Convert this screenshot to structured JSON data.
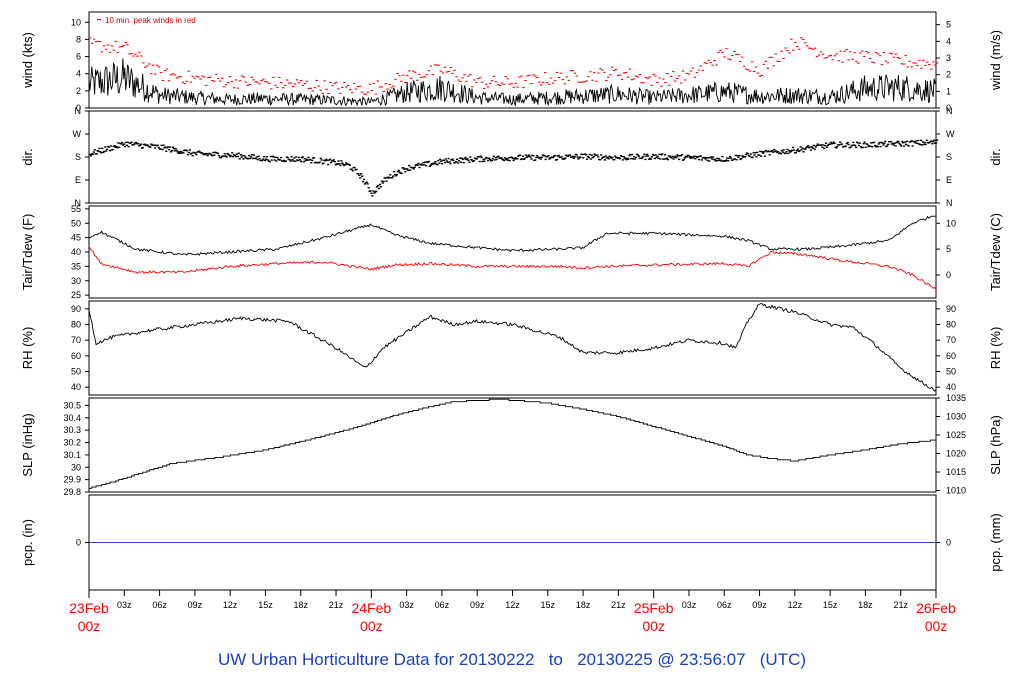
{
  "footer": {
    "title_prefix": "UW Urban Horticulture Data for 20130222",
    "title_to": "to",
    "title_suffix": "20130225 @ 23:56:07",
    "title_tz": "(UTC)"
  },
  "chart_data": [
    {
      "id": "wind",
      "type": "line",
      "ylabel_left": "wind (kts)",
      "ylabel_right": "wind (m/s)",
      "annotation": "10 min. peak winds in red",
      "ylim": [
        0,
        11.2
      ],
      "yticks_left": [
        0,
        2,
        4,
        6,
        8,
        10
      ],
      "yticks_right": [
        0,
        1,
        2,
        3,
        4,
        5
      ],
      "right_ylim": [
        0,
        5.76
      ],
      "x_hours": [
        0,
        3,
        6,
        9,
        12,
        15,
        18,
        21,
        24,
        27,
        30,
        33,
        36,
        39,
        42,
        45,
        48,
        51,
        54,
        57,
        60,
        63,
        66,
        69,
        72
      ],
      "series": [
        {
          "name": "mean wind",
          "color": "#000000",
          "values": [
            2.8,
            3.5,
            1.5,
            1.2,
            1.0,
            1.1,
            1.0,
            0.9,
            0.7,
            1.8,
            2.4,
            1.2,
            1.0,
            1.2,
            1.4,
            1.6,
            1.2,
            1.5,
            1.9,
            1.4,
            1.5,
            1.3,
            2.3,
            2.4,
            2.0
          ]
        },
        {
          "name": "10 min peak",
          "color": "#ff0000",
          "values": [
            7.5,
            7.0,
            4.0,
            3.5,
            3.2,
            3.0,
            2.8,
            2.4,
            2.3,
            3.8,
            4.5,
            3.0,
            3.0,
            3.5,
            3.8,
            4.2,
            3.3,
            3.8,
            6.5,
            4.5,
            7.8,
            6.2,
            6.0,
            5.5,
            5.2
          ]
        }
      ]
    },
    {
      "id": "dir",
      "type": "scatter",
      "ylabel_left": "dir.",
      "ylabel_right": "dir.",
      "ytick_labels": [
        "N",
        "E",
        "S",
        "W",
        "N"
      ],
      "ylim": [
        0,
        360
      ],
      "x_hours": [
        0,
        3,
        6,
        9,
        12,
        15,
        18,
        21,
        22,
        23,
        24,
        25,
        26,
        27,
        30,
        33,
        36,
        39,
        42,
        45,
        48,
        51,
        54,
        57,
        60,
        63,
        66,
        69,
        72
      ],
      "series": [
        {
          "name": "direction",
          "color": "#000000",
          "values": [
            195,
            235,
            220,
            195,
            190,
            175,
            175,
            160,
            150,
            110,
            40,
            90,
            120,
            140,
            165,
            175,
            180,
            180,
            185,
            180,
            185,
            180,
            175,
            195,
            210,
            230,
            230,
            235,
            240
          ]
        }
      ]
    },
    {
      "id": "temp",
      "type": "line",
      "ylabel_left": "Tair/Tdew (F)",
      "ylabel_right": "Tair/Tdew (C)",
      "ylim": [
        24,
        56
      ],
      "yticks_left": [
        25,
        30,
        35,
        40,
        45,
        50,
        55
      ],
      "yticks_right": [
        0,
        5,
        10
      ],
      "x_hours": [
        0,
        1,
        4,
        8,
        12,
        16,
        20,
        24,
        26,
        29,
        33,
        36,
        40,
        42,
        44,
        48,
        54,
        56,
        58,
        61,
        64,
        68,
        70,
        72
      ],
      "series": [
        {
          "name": "Tair",
          "color": "#000000",
          "values": [
            45,
            47,
            41,
            39,
            40,
            41,
            45,
            49.5,
            46,
            43,
            41.5,
            40.5,
            41,
            41.5,
            46.5,
            46.5,
            45.5,
            44,
            41,
            41,
            42,
            44,
            50,
            53
          ]
        },
        {
          "name": "Tdew",
          "color": "#ff0000",
          "values": [
            42,
            36,
            33,
            33,
            35,
            36,
            36.5,
            34,
            35.5,
            36,
            35,
            35,
            35,
            34.5,
            35,
            35.5,
            36,
            35,
            40,
            39,
            37,
            35,
            32,
            27
          ]
        }
      ]
    },
    {
      "id": "rh",
      "type": "line",
      "ylabel_left": "RH (%)",
      "ylabel_right": "RH (%)",
      "ylim": [
        35,
        95
      ],
      "yticks_left": [
        40,
        50,
        60,
        70,
        80,
        90
      ],
      "yticks_right": [
        40,
        50,
        60,
        70,
        80,
        90
      ],
      "x_hours": [
        0,
        0.6,
        2,
        5,
        9,
        13,
        17,
        21,
        23.5,
        25,
        27,
        29,
        31,
        33,
        36,
        40,
        42,
        45,
        48,
        51,
        54,
        55,
        56,
        57,
        60,
        63,
        65,
        67,
        69,
        71,
        72
      ],
      "series": [
        {
          "name": "RH",
          "color": "#000000",
          "values": [
            90,
            68,
            72,
            76,
            80,
            84,
            82,
            65,
            52,
            65,
            75,
            85,
            80,
            82,
            80,
            72,
            62,
            62,
            65,
            70,
            68,
            65,
            82,
            93,
            88,
            80,
            78,
            66,
            52,
            42,
            38
          ]
        }
      ]
    },
    {
      "id": "slp",
      "type": "line",
      "ylabel_left": "SLP (inHg)",
      "ylabel_right": "SLP (hPa)",
      "ylim": [
        29.8,
        30.56
      ],
      "yticks_left": [
        29.8,
        29.9,
        30.0,
        30.1,
        30.2,
        30.3,
        30.4,
        30.5
      ],
      "yticks_right": [
        1010,
        1015,
        1020,
        1025,
        1030,
        1035
      ],
      "right_ylim": [
        1009.6,
        1035
      ],
      "x_hours": [
        0,
        2,
        4,
        7,
        11,
        15,
        19,
        23,
        26,
        29,
        31,
        35,
        39,
        42,
        45,
        48,
        51,
        54,
        56,
        58,
        60,
        63,
        66,
        69,
        72
      ],
      "series": [
        {
          "name": "SLP",
          "color": "#000000",
          "values": [
            29.83,
            29.88,
            29.94,
            30.03,
            30.08,
            30.14,
            30.23,
            30.33,
            30.42,
            30.49,
            30.53,
            30.55,
            30.52,
            30.47,
            30.41,
            30.33,
            30.25,
            30.17,
            30.1,
            30.07,
            30.05,
            30.1,
            30.14,
            30.19,
            30.22
          ]
        }
      ]
    },
    {
      "id": "pcp",
      "type": "line",
      "ylabel_left": "pcp. (in)",
      "ylabel_right": "pcp. (mm)",
      "yticks_left": [
        0
      ],
      "yticks_right": [
        0
      ],
      "ylim": [
        -1,
        1
      ],
      "x_hours": [
        0,
        72
      ],
      "series": [
        {
          "name": "precip",
          "color": "#3344cc",
          "values": [
            0,
            0
          ]
        }
      ]
    }
  ],
  "x_axis": {
    "hours_min": 0,
    "hours_max": 72,
    "minor_ticks": [
      {
        "h": 3,
        "label": "03z"
      },
      {
        "h": 6,
        "label": "06z"
      },
      {
        "h": 9,
        "label": "09z"
      },
      {
        "h": 12,
        "label": "12z"
      },
      {
        "h": 15,
        "label": "15z"
      },
      {
        "h": 18,
        "label": "18z"
      },
      {
        "h": 21,
        "label": "21z"
      },
      {
        "h": 27,
        "label": "03z"
      },
      {
        "h": 30,
        "label": "06z"
      },
      {
        "h": 33,
        "label": "09z"
      },
      {
        "h": 36,
        "label": "12z"
      },
      {
        "h": 39,
        "label": "15z"
      },
      {
        "h": 42,
        "label": "18z"
      },
      {
        "h": 45,
        "label": "21z"
      },
      {
        "h": 51,
        "label": "03z"
      },
      {
        "h": 54,
        "label": "06z"
      },
      {
        "h": 57,
        "label": "09z"
      },
      {
        "h": 60,
        "label": "12z"
      },
      {
        "h": 63,
        "label": "15z"
      },
      {
        "h": 66,
        "label": "18z"
      },
      {
        "h": 69,
        "label": "21z"
      }
    ],
    "day_ticks": [
      {
        "h": 0,
        "date": "23Feb",
        "hour": "00z"
      },
      {
        "h": 24,
        "date": "24Feb",
        "hour": "00z"
      },
      {
        "h": 48,
        "date": "25Feb",
        "hour": "00z"
      },
      {
        "h": 72,
        "date": "26Feb",
        "hour": "00z"
      }
    ]
  }
}
